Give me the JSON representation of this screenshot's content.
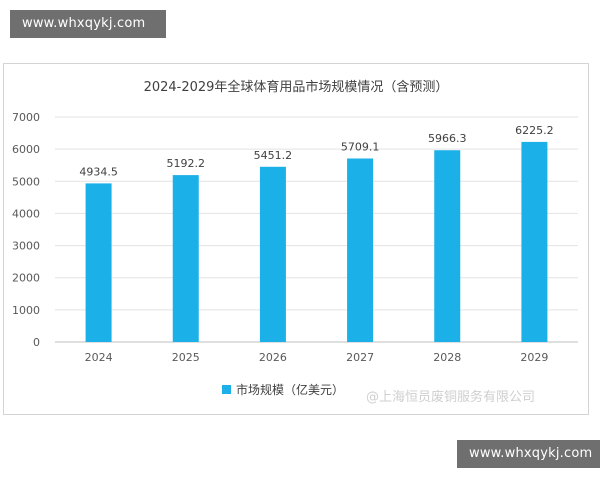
{
  "watermark_top": "www.whxqykj.com",
  "watermark_bottom": "www.whxqykj.com",
  "credit_text": "@上海恒员废铜服务有限公司",
  "chart_data": {
    "type": "bar",
    "title": "2024-2029年全球体育用品市场规模情况（含预测）",
    "categories": [
      "2024",
      "2025",
      "2026",
      "2027",
      "2028",
      "2029"
    ],
    "series": [
      {
        "name": "市场规模（亿美元）",
        "values": [
          4934.5,
          5192.2,
          5451.2,
          5709.1,
          5966.3,
          6225.2
        ],
        "color": "#1cb0e9"
      }
    ],
    "data_labels": [
      "4934.5",
      "5192.2",
      "5451.2",
      "5709.1",
      "5966.3",
      "6225.2"
    ],
    "ylim": [
      0,
      7000
    ],
    "yticks": [
      0,
      1000,
      2000,
      3000,
      4000,
      5000,
      6000,
      7000
    ],
    "ytick_labels": [
      "0",
      "1000",
      "2000",
      "3000",
      "4000",
      "5000",
      "6000",
      "7000"
    ],
    "grid": true,
    "legend_position": "bottom"
  }
}
